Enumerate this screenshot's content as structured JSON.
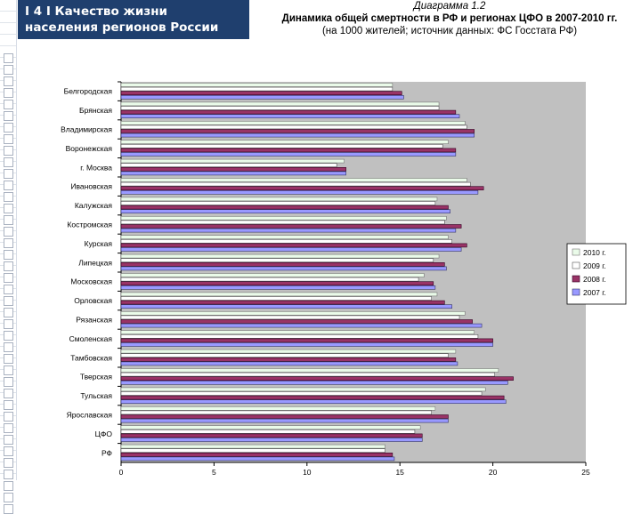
{
  "header": {
    "line1": "I 4 I  Качество жизни",
    "line2": "населения регионов России"
  },
  "chart_title": {
    "line1": "Диаграмма 1.2",
    "line2": "Динамика общей смертности в РФ и регионах ЦФО в 2007-2010 гг.",
    "line3": "(на 1000 жителей; источник данных: ФС Госстата РФ)"
  },
  "colors": {
    "plot_bg": "#c0c0c0",
    "header_bg": "#1f3f6e",
    "s2010": "#eafbe9",
    "s2009": "#ffffff",
    "s2008": "#993366",
    "s2007": "#9999ff"
  },
  "chart_data": {
    "type": "bar",
    "orientation": "horizontal",
    "categories": [
      "Белгородская",
      "Брянская",
      "Владимирская",
      "Воронежская",
      "г. Москва",
      "Ивановская",
      "Калужская",
      "Костромская",
      "Курская",
      "Липецкая",
      "Московская",
      "Орловская",
      "Рязанская",
      "Смоленская",
      "Тамбовская",
      "Тверская",
      "Тульская",
      "Ярославская",
      "ЦФО",
      "РФ"
    ],
    "series": [
      {
        "name": "2010 г.",
        "values": [
          14.6,
          17.1,
          18.5,
          17.6,
          12.0,
          18.6,
          17.0,
          17.5,
          17.6,
          17.1,
          16.3,
          17.0,
          18.5,
          19.0,
          18.0,
          20.3,
          19.6,
          16.9,
          16.1,
          14.2
        ]
      },
      {
        "name": "2009 г.",
        "values": [
          14.6,
          17.1,
          18.6,
          17.3,
          11.6,
          18.8,
          16.9,
          17.4,
          17.8,
          16.8,
          16.0,
          16.7,
          18.2,
          19.2,
          17.6,
          20.1,
          19.4,
          16.7,
          15.8,
          14.2
        ]
      },
      {
        "name": "2008 г.",
        "values": [
          15.1,
          18.0,
          19.0,
          18.0,
          12.1,
          19.5,
          17.6,
          18.3,
          18.6,
          17.4,
          16.8,
          17.4,
          18.9,
          20.0,
          18.0,
          21.1,
          20.6,
          17.6,
          16.2,
          14.6
        ]
      },
      {
        "name": "2007 г.",
        "values": [
          15.2,
          18.2,
          19.0,
          18.0,
          12.1,
          19.2,
          17.7,
          18.0,
          18.3,
          17.5,
          16.9,
          17.8,
          19.4,
          20.0,
          18.1,
          20.8,
          20.7,
          17.6,
          16.2,
          14.7
        ]
      }
    ],
    "xlim": [
      0,
      25
    ],
    "xticks": [
      "0",
      "5",
      "10",
      "15",
      "20",
      "25"
    ],
    "legend_position": "right",
    "grid": false
  }
}
